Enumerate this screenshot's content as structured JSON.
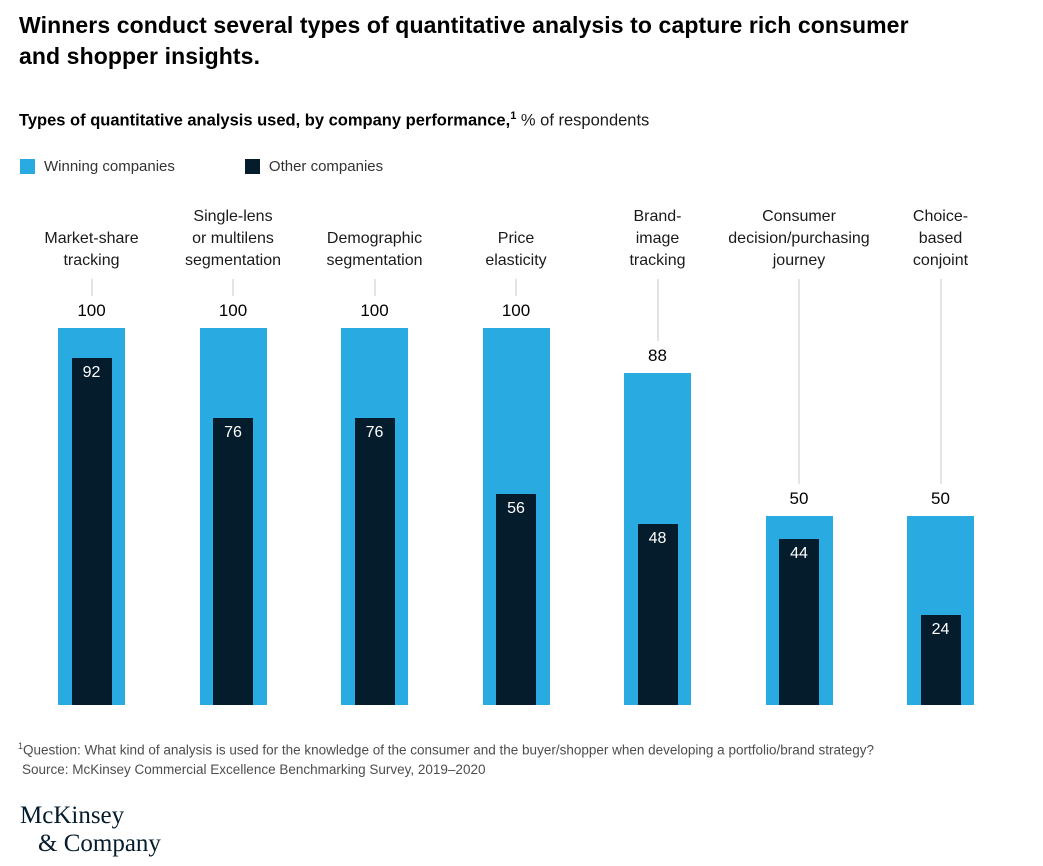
{
  "title": "Winners conduct several types of quantitative analysis to capture rich consumer and shopper insights.",
  "subtitle": {
    "bold": "Types of quantitative analysis used, by company performance,",
    "superscript": "1",
    "rest": " % of respondents"
  },
  "legend": [
    {
      "label": "Winning companies",
      "color": "#29abe2"
    },
    {
      "label": "Other companies",
      "color": "#051c2c"
    }
  ],
  "chart_data": {
    "type": "bar",
    "style": "nested-overlapping-bars",
    "categories": [
      "Market-share\ntracking",
      "Single-lens\nor multilens\nsegmentation",
      "Demographic\nsegmentation",
      "Price\nelasticity",
      "Brand-\nimage\ntracking",
      "Consumer\ndecision/purchasing\njourney",
      "Choice-\nbased\nconjoint"
    ],
    "series": [
      {
        "name": "Winning companies",
        "color": "#29abe2",
        "values": [
          100,
          100,
          100,
          100,
          88,
          50,
          50
        ]
      },
      {
        "name": "Other companies",
        "color": "#051c2c",
        "values": [
          92,
          76,
          76,
          56,
          48,
          44,
          24
        ]
      }
    ],
    "title": "Types of quantitative analysis used, by company performance, % of respondents",
    "xlabel": "",
    "ylabel": "% of respondents",
    "ylim": [
      0,
      100
    ],
    "grid": false,
    "legend_position": "top-left",
    "value_labels": "outside-top for winning series, inside-top white for other series"
  },
  "footnote": {
    "sup": "1",
    "question": "Question: What kind of analysis is used for the knowledge of the consumer and the buyer/shopper when developing a portfolio/brand strategy?",
    "source": "Source: McKinsey Commercial Excellence Benchmarking Survey, 2019–2020"
  },
  "logo": {
    "line1": "McKinsey",
    "line2": "& Company"
  },
  "colors": {
    "winning_bar": "#29abe2",
    "other_bar": "#051c2c",
    "connector_line": "#c9c9c9",
    "footnote_text": "#4d4d4d",
    "logo_text": "#051c2c"
  }
}
